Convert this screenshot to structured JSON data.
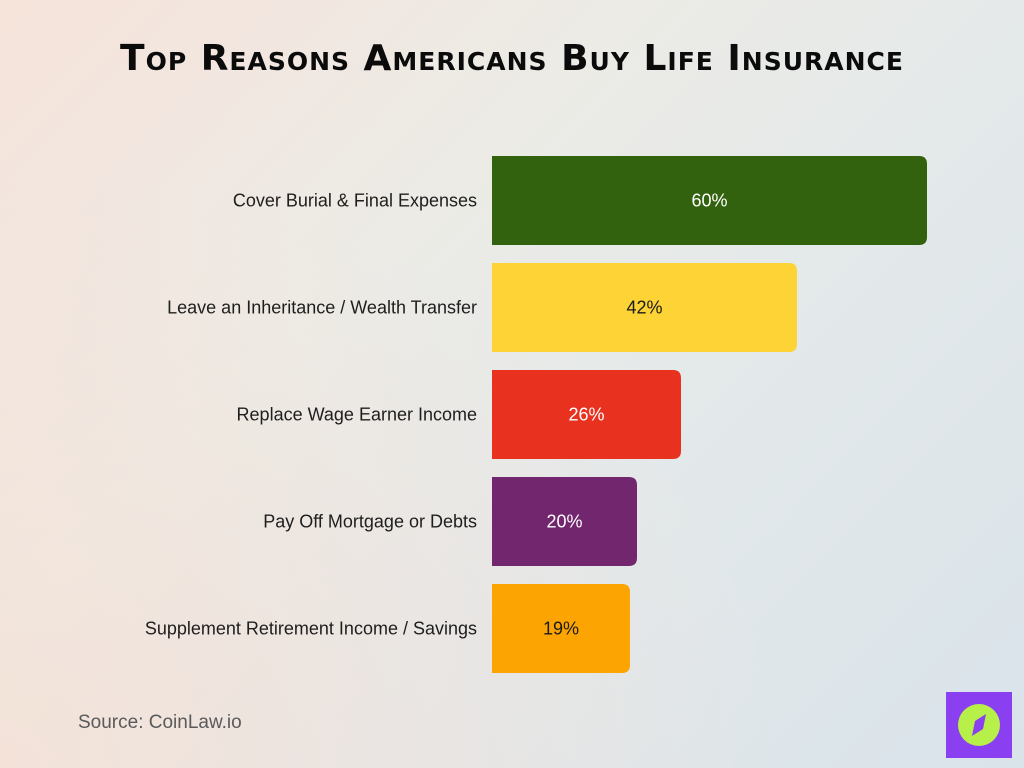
{
  "title": "Top Reasons Americans Buy Life Insurance",
  "source": "Source: CoinLaw.io",
  "chart_data": {
    "type": "bar",
    "orientation": "horizontal",
    "title": "Top Reasons Americans Buy Life Insurance",
    "categories": [
      "Cover Burial & Final Expenses",
      "Leave an Inheritance / Wealth Transfer",
      "Replace Wage Earner Income",
      "Pay Off Mortgage or Debts",
      "Supplement Retirement Income / Savings"
    ],
    "values": [
      60,
      42,
      26,
      20,
      19
    ],
    "value_labels": [
      "60%",
      "42%",
      "26%",
      "20%",
      "19%"
    ],
    "colors": [
      "#33620e",
      "#fdd335",
      "#e8321f",
      "#72266d",
      "#fca502"
    ],
    "label_colors": [
      "#ffffff",
      "#1a1a1a",
      "#ffffff",
      "#ffffff",
      "#1a1a1a"
    ],
    "xlabel": "",
    "ylabel": "",
    "xlim": [
      0,
      60
    ],
    "grid": false,
    "legend": "none"
  },
  "logo": {
    "icon": "compass-icon",
    "background": "#8a3ff0",
    "accent": "#b8f04a"
  }
}
